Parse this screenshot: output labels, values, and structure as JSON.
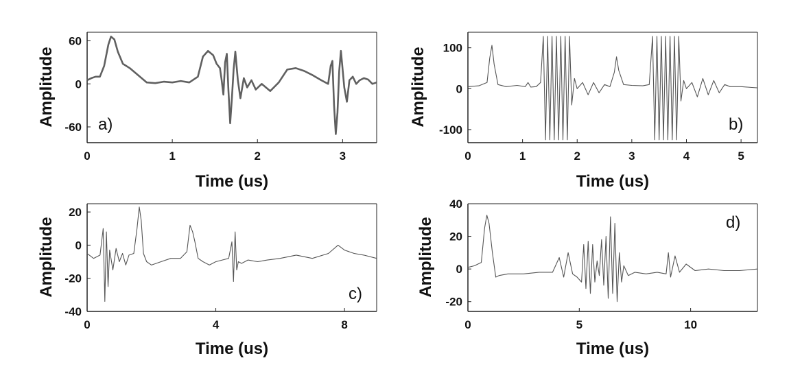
{
  "chart_data": [
    {
      "type": "line",
      "panel_label": "a)",
      "xlabel": "Time (us)",
      "ylabel": "Amplitude",
      "xlim": [
        0,
        3.4
      ],
      "ylim": [
        -82,
        72
      ],
      "xticks": [
        0,
        1,
        2,
        3
      ],
      "yticks": [
        -60,
        0,
        60
      ],
      "color": "#606060",
      "series": [
        {
          "x": [
            0,
            0.05,
            0.1,
            0.15,
            0.2,
            0.25,
            0.28,
            0.32,
            0.36,
            0.42,
            0.5,
            0.6,
            0.7,
            0.8,
            0.9,
            1.0,
            1.1,
            1.2,
            1.3,
            1.36,
            1.42,
            1.48,
            1.52,
            1.56,
            1.58,
            1.6,
            1.62,
            1.64,
            1.66,
            1.68,
            1.7,
            1.72,
            1.74,
            1.77,
            1.8,
            1.84,
            1.88,
            1.93,
            1.98,
            2.05,
            2.15,
            2.25,
            2.35,
            2.45,
            2.55,
            2.65,
            2.75,
            2.83,
            2.86,
            2.88,
            2.9,
            2.92,
            2.94,
            2.96,
            2.98,
            3.0,
            3.02,
            3.05,
            3.08,
            3.12,
            3.16,
            3.2,
            3.25,
            3.3,
            3.35,
            3.4
          ],
          "y": [
            5,
            8,
            10,
            10,
            25,
            55,
            66,
            62,
            45,
            28,
            22,
            12,
            2,
            1,
            3,
            2,
            4,
            2,
            10,
            38,
            46,
            40,
            28,
            22,
            5,
            -15,
            30,
            42,
            -10,
            -55,
            -20,
            20,
            45,
            5,
            -20,
            8,
            -5,
            5,
            -8,
            0,
            -10,
            2,
            20,
            22,
            18,
            12,
            5,
            0,
            25,
            32,
            -30,
            -70,
            -40,
            18,
            46,
            20,
            -5,
            -25,
            5,
            10,
            0,
            5,
            8,
            6,
            0,
            2
          ]
        }
      ]
    },
    {
      "type": "line",
      "panel_label": "b)",
      "xlabel": "Time (us)",
      "ylabel": "Amplitude",
      "xlim": [
        0,
        5.3
      ],
      "ylim": [
        -132,
        138
      ],
      "xticks": [
        0,
        1,
        2,
        3,
        4,
        5
      ],
      "yticks": [
        -100,
        0,
        100
      ],
      "color": "#555555",
      "series": [
        {
          "x": [
            0,
            0.2,
            0.35,
            0.4,
            0.44,
            0.48,
            0.55,
            0.7,
            0.9,
            1.05,
            1.1,
            1.15,
            1.25,
            1.33,
            1.38,
            1.42,
            1.46,
            1.5,
            1.54,
            1.58,
            1.62,
            1.66,
            1.7,
            1.74,
            1.78,
            1.82,
            1.86,
            1.9,
            1.95,
            2.0,
            2.1,
            2.2,
            2.3,
            2.4,
            2.5,
            2.6,
            2.68,
            2.72,
            2.76,
            2.85,
            3.0,
            3.2,
            3.32,
            3.38,
            3.42,
            3.46,
            3.5,
            3.54,
            3.58,
            3.62,
            3.66,
            3.7,
            3.74,
            3.78,
            3.82,
            3.86,
            3.9,
            3.95,
            4.0,
            4.1,
            4.2,
            4.3,
            4.4,
            4.5,
            4.6,
            4.7,
            4.8,
            5.0,
            5.2,
            5.3
          ],
          "y": [
            5,
            7,
            15,
            75,
            106,
            60,
            10,
            5,
            8,
            5,
            15,
            4,
            5,
            15,
            128,
            -125,
            128,
            -125,
            128,
            -125,
            128,
            -125,
            128,
            -125,
            128,
            -125,
            128,
            -40,
            25,
            0,
            15,
            -15,
            15,
            -10,
            10,
            5,
            40,
            78,
            45,
            10,
            8,
            7,
            10,
            128,
            -125,
            128,
            -125,
            128,
            -125,
            128,
            -125,
            128,
            -125,
            128,
            -125,
            128,
            -30,
            20,
            0,
            15,
            -20,
            25,
            -15,
            20,
            -10,
            10,
            5,
            5,
            3,
            2
          ]
        }
      ]
    },
    {
      "type": "line",
      "panel_label": "c)",
      "xlabel": "Time (us)",
      "ylabel": "Amplitude",
      "xlim": [
        0,
        9
      ],
      "ylim": [
        -40,
        25
      ],
      "xticks": [
        0,
        4,
        8
      ],
      "yticks": [
        -40,
        -20,
        0,
        20
      ],
      "color": "#555555",
      "series": [
        {
          "x": [
            0,
            0.2,
            0.4,
            0.5,
            0.55,
            0.6,
            0.65,
            0.7,
            0.8,
            0.9,
            1.0,
            1.1,
            1.2,
            1.3,
            1.45,
            1.55,
            1.62,
            1.68,
            1.75,
            1.85,
            2.0,
            2.3,
            2.6,
            2.9,
            3.1,
            3.2,
            3.28,
            3.35,
            3.45,
            3.6,
            3.8,
            4.0,
            4.2,
            4.4,
            4.5,
            4.55,
            4.6,
            4.65,
            4.7,
            4.8,
            5.0,
            5.3,
            5.6,
            6.0,
            6.5,
            7.0,
            7.5,
            7.8,
            8.0,
            8.3,
            8.6,
            9.0
          ],
          "y": [
            -5,
            -8,
            -6,
            10,
            -34,
            8,
            -25,
            -3,
            -15,
            -2,
            -10,
            -5,
            -12,
            -6,
            -5,
            10,
            23,
            15,
            -5,
            -10,
            -12,
            -10,
            -8,
            -8,
            -4,
            12,
            8,
            2,
            -8,
            -10,
            -12,
            -10,
            -9,
            -8,
            2,
            -22,
            8,
            -15,
            -10,
            -11,
            -9,
            -10,
            -9,
            -8,
            -6,
            -8,
            -5,
            0,
            -3,
            -5,
            -6,
            -8
          ]
        }
      ]
    },
    {
      "type": "line",
      "panel_label": "d)",
      "xlabel": "Time (us)",
      "ylabel": "Amplitude",
      "xlim": [
        0,
        13
      ],
      "ylim": [
        -26,
        40
      ],
      "xticks": [
        0,
        5,
        10
      ],
      "yticks": [
        -20,
        0,
        20,
        40
      ],
      "color": "#555555",
      "series": [
        {
          "x": [
            0,
            0.3,
            0.6,
            0.75,
            0.85,
            0.95,
            1.1,
            1.25,
            1.4,
            1.8,
            2.5,
            3.2,
            3.8,
            4.1,
            4.3,
            4.5,
            4.7,
            4.9,
            5.1,
            5.2,
            5.3,
            5.4,
            5.5,
            5.6,
            5.7,
            5.8,
            5.9,
            6.0,
            6.1,
            6.2,
            6.3,
            6.4,
            6.5,
            6.6,
            6.7,
            6.8,
            6.9,
            7.0,
            7.2,
            7.5,
            8.0,
            8.5,
            8.9,
            9.0,
            9.1,
            9.3,
            9.5,
            9.8,
            10.2,
            10.8,
            11.5,
            12.2,
            13.0
          ],
          "y": [
            1,
            2,
            4,
            25,
            33,
            28,
            10,
            -5,
            -4,
            -3,
            -3,
            -2,
            -2,
            7,
            -5,
            10,
            -3,
            -5,
            -8,
            15,
            -12,
            17,
            -15,
            15,
            -8,
            5,
            -4,
            18,
            -10,
            20,
            -18,
            32,
            -15,
            28,
            -20,
            10,
            -8,
            2,
            -4,
            -2,
            -3,
            -2,
            -3,
            10,
            -5,
            8,
            -2,
            3,
            -1,
            0,
            -1,
            -1,
            0
          ]
        }
      ]
    }
  ]
}
